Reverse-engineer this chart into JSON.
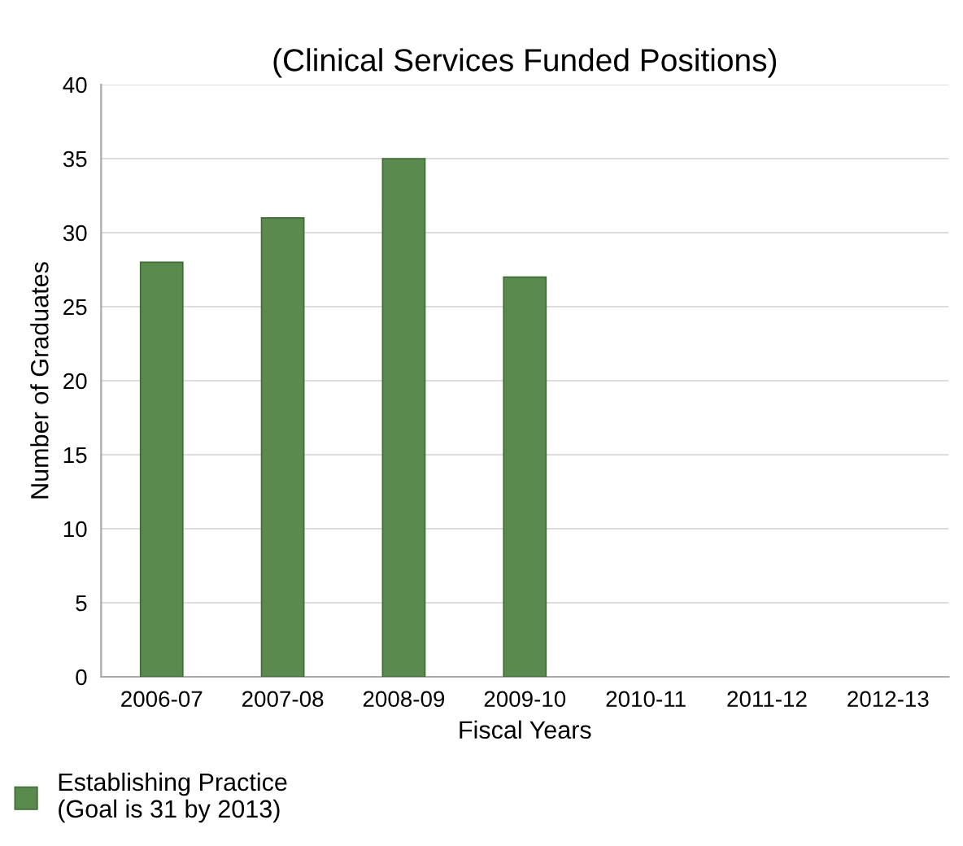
{
  "chart_data": {
    "type": "bar",
    "title": "(Clinical Services Funded Positions)",
    "xlabel": "Fiscal Years",
    "ylabel": "Number of Graduates",
    "categories": [
      "2006-07",
      "2007-08",
      "2008-09",
      "2009-10",
      "2010-11",
      "2011-12",
      "2012-13"
    ],
    "series": [
      {
        "name": "Establishing Practice\n(Goal is 31 by 2013)",
        "color": "#5b8a4f",
        "values": [
          28,
          31,
          35,
          27,
          null,
          null,
          null
        ]
      }
    ],
    "ylim": [
      0,
      40
    ],
    "yticks": [
      0,
      5,
      10,
      15,
      20,
      25,
      30,
      35,
      40
    ],
    "grid": "y",
    "legend": "bottom left"
  }
}
